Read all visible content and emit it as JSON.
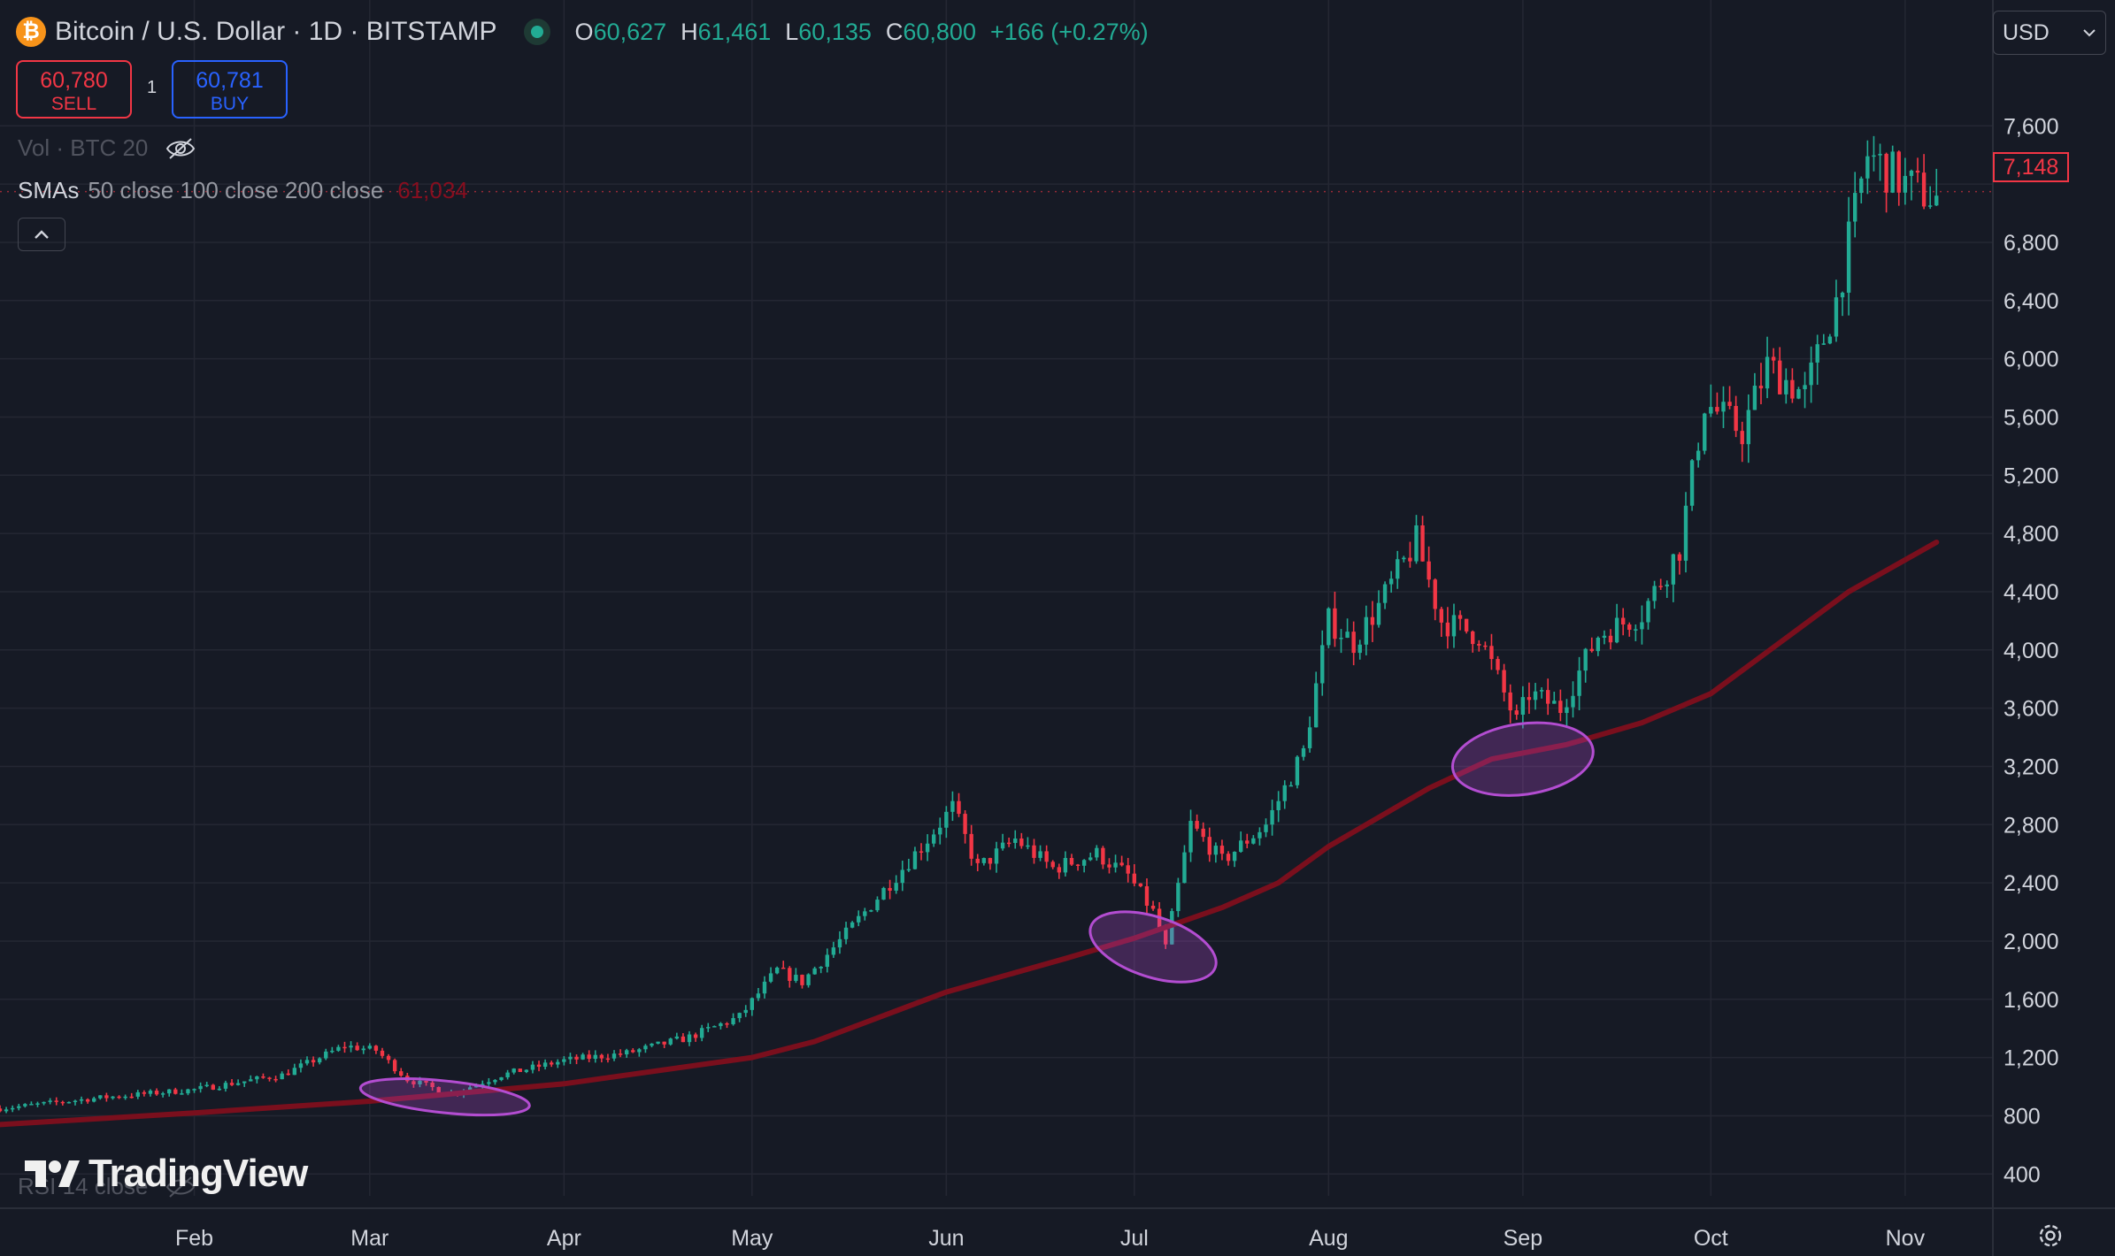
{
  "header": {
    "coin_glyph": "₿",
    "title": "Bitcoin / U.S. Dollar · 1D · BITSTAMP",
    "ohlc": [
      {
        "k": "O",
        "v": "60,627"
      },
      {
        "k": "H",
        "v": "61,461"
      },
      {
        "k": "L",
        "v": "60,135"
      },
      {
        "k": "C",
        "v": "60,800"
      }
    ],
    "change": "+166 (+0.27%)"
  },
  "trade": {
    "sell_price": "60,780",
    "sell_label": "SELL",
    "quantity": "1",
    "buy_price": "60,781",
    "buy_label": "BUY"
  },
  "indicators": {
    "volume_label": "Vol · BTC 20",
    "sma_name": "SMAs",
    "sma_params": "50 close 100 close 200 close",
    "sma_value": "61,034",
    "rsi_label": "RSI 14 close"
  },
  "currency": "USD",
  "last_price": "7,148",
  "logo_text": "TradingView",
  "colors": {
    "background": "#161a25",
    "up": "#22ab94",
    "down": "#f23645",
    "sma": "#7a0f1d",
    "highlight": "#b34dd1"
  },
  "icons": {
    "coin": "bitcoin-icon",
    "visibility": "eye-off-icon",
    "collapse": "chevron-up-icon",
    "settings": "gear-icon"
  },
  "chart_data": {
    "type": "candlestick",
    "y_scale": "linear",
    "ylim": [
      250,
      8100
    ],
    "y_ticks": [
      400,
      800,
      1200,
      1600,
      2000,
      2400,
      2800,
      3200,
      3600,
      4000,
      4400,
      4800,
      5200,
      5600,
      6000,
      6400,
      6800,
      7200,
      7600
    ],
    "y_tick_labels": [
      "400",
      "800",
      "1,200",
      "1,600",
      "2,000",
      "2,400",
      "2,800",
      "3,200",
      "3,600",
      "4,000",
      "4,400",
      "4,800",
      "5,200",
      "5,600",
      "6,000",
      "6,400",
      "6,800",
      "",
      "7,600"
    ],
    "x_labels": [
      "Feb",
      "Mar",
      "Apr",
      "May",
      "Jun",
      "Jul",
      "Aug",
      "Sep",
      "Oct",
      "Nov"
    ],
    "x_range_days": [
      0,
      318
    ],
    "x_label_days": [
      31,
      59,
      90,
      120,
      151,
      181,
      212,
      243,
      273,
      304
    ],
    "grid": true,
    "price_path": [
      [
        0,
        850
      ],
      [
        15,
        920
      ],
      [
        31,
        980
      ],
      [
        45,
        1080
      ],
      [
        55,
        1280
      ],
      [
        60,
        1250
      ],
      [
        65,
        1050
      ],
      [
        72,
        950
      ],
      [
        80,
        1080
      ],
      [
        90,
        1180
      ],
      [
        100,
        1230
      ],
      [
        110,
        1340
      ],
      [
        118,
        1480
      ],
      [
        124,
        1800
      ],
      [
        128,
        1720
      ],
      [
        135,
        2050
      ],
      [
        142,
        2400
      ],
      [
        148,
        2700
      ],
      [
        152,
        2920
      ],
      [
        156,
        2500
      ],
      [
        162,
        2700
      ],
      [
        168,
        2500
      ],
      [
        175,
        2600
      ],
      [
        180,
        2450
      ],
      [
        184,
        2200
      ],
      [
        186,
        1950
      ],
      [
        190,
        2800
      ],
      [
        195,
        2550
      ],
      [
        202,
        2800
      ],
      [
        208,
        3300
      ],
      [
        212,
        4200
      ],
      [
        216,
        4050
      ],
      [
        220,
        4300
      ],
      [
        226,
        4750
      ],
      [
        230,
        4200
      ],
      [
        236,
        4100
      ],
      [
        242,
        3500
      ],
      [
        244,
        3700
      ],
      [
        249,
        3600
      ],
      [
        255,
        4100
      ],
      [
        262,
        4250
      ],
      [
        268,
        4700
      ],
      [
        272,
        5700
      ],
      [
        278,
        5500
      ],
      [
        282,
        5950
      ],
      [
        288,
        5750
      ],
      [
        293,
        6400
      ],
      [
        298,
        7400
      ],
      [
        304,
        7200
      ],
      [
        309,
        7100
      ]
    ],
    "sma_200": [
      [
        0,
        740
      ],
      [
        31,
        820
      ],
      [
        59,
        900
      ],
      [
        90,
        1020
      ],
      [
        120,
        1200
      ],
      [
        130,
        1310
      ],
      [
        151,
        1650
      ],
      [
        170,
        1880
      ],
      [
        181,
        2020
      ],
      [
        195,
        2230
      ],
      [
        204,
        2400
      ],
      [
        212,
        2650
      ],
      [
        228,
        3050
      ],
      [
        238,
        3250
      ],
      [
        250,
        3350
      ],
      [
        262,
        3500
      ],
      [
        273,
        3700
      ],
      [
        284,
        4050
      ],
      [
        295,
        4400
      ],
      [
        309,
        4740
      ]
    ],
    "highlighted_touches": [
      {
        "center_day": 71,
        "center_price": 930
      },
      {
        "center_day": 184,
        "center_price": 1960
      },
      {
        "center_day": 243,
        "center_price": 3250
      }
    ]
  }
}
